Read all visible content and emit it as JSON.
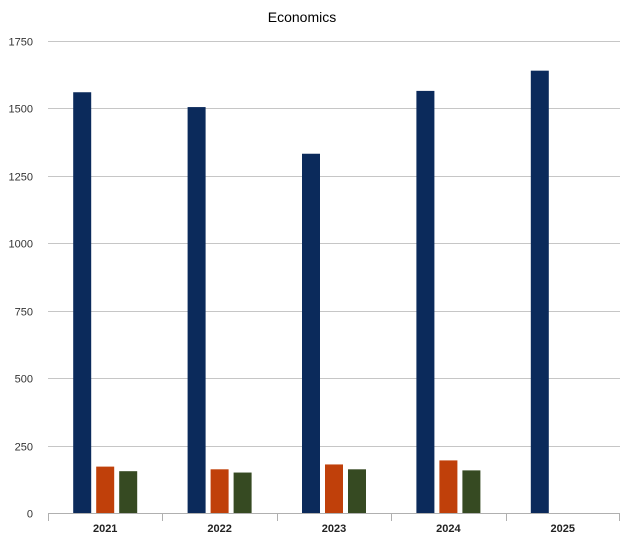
{
  "chart_data": {
    "type": "bar",
    "title": "Economics",
    "categories": [
      "2021",
      "2022",
      "2023",
      "2024",
      "2025"
    ],
    "ylim": [
      0,
      1750
    ],
    "yticks": [
      0,
      250,
      500,
      750,
      1000,
      1250,
      1500,
      1750
    ],
    "grid": true,
    "legend": "none",
    "series": [
      {
        "values": [
          1560,
          1505,
          1332,
          1565,
          1640
        ],
        "color": "#0b2a5b"
      },
      {
        "values": [
          172,
          162,
          180,
          195,
          null
        ],
        "color": "#c0400a"
      },
      {
        "values": [
          155,
          150,
          162,
          158,
          null
        ],
        "color": "#364a22"
      }
    ]
  }
}
